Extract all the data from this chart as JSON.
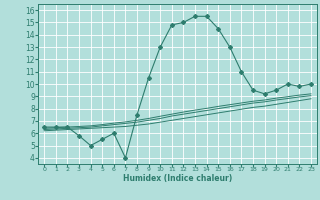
{
  "title": "",
  "xlabel": "Humidex (Indice chaleur)",
  "bg_color": "#b2dfdb",
  "grid_color": "#ffffff",
  "line_color": "#2e7d6e",
  "marker_color": "#2e7d6e",
  "xlim": [
    -0.5,
    23.5
  ],
  "ylim": [
    3.5,
    16.5
  ],
  "xticks": [
    0,
    1,
    2,
    3,
    4,
    5,
    6,
    7,
    8,
    9,
    10,
    11,
    12,
    13,
    14,
    15,
    16,
    17,
    18,
    19,
    20,
    21,
    22,
    23
  ],
  "yticks": [
    4,
    5,
    6,
    7,
    8,
    9,
    10,
    11,
    12,
    13,
    14,
    15,
    16
  ],
  "series_main": [
    6.5,
    6.5,
    6.5,
    5.8,
    5.0,
    5.5,
    6.0,
    4.0,
    7.5,
    10.5,
    13.0,
    14.8,
    15.0,
    15.5,
    15.5,
    14.5,
    13.0,
    11.0,
    9.5,
    9.2,
    9.5,
    10.0,
    9.8,
    10.0
  ],
  "series_linear": [
    [
      6.2,
      6.25,
      6.3,
      6.35,
      6.4,
      6.45,
      6.5,
      6.55,
      6.65,
      6.75,
      6.9,
      7.05,
      7.2,
      7.35,
      7.5,
      7.65,
      7.8,
      7.95,
      8.1,
      8.2,
      8.35,
      8.5,
      8.65,
      8.8
    ],
    [
      6.3,
      6.35,
      6.4,
      6.45,
      6.5,
      6.6,
      6.7,
      6.8,
      6.9,
      7.05,
      7.2,
      7.4,
      7.55,
      7.7,
      7.85,
      8.0,
      8.15,
      8.3,
      8.45,
      8.55,
      8.7,
      8.82,
      8.95,
      9.05
    ],
    [
      6.4,
      6.45,
      6.5,
      6.55,
      6.6,
      6.7,
      6.82,
      6.92,
      7.05,
      7.2,
      7.38,
      7.55,
      7.72,
      7.88,
      8.02,
      8.18,
      8.32,
      8.46,
      8.6,
      8.7,
      8.85,
      8.97,
      9.1,
      9.2
    ]
  ]
}
